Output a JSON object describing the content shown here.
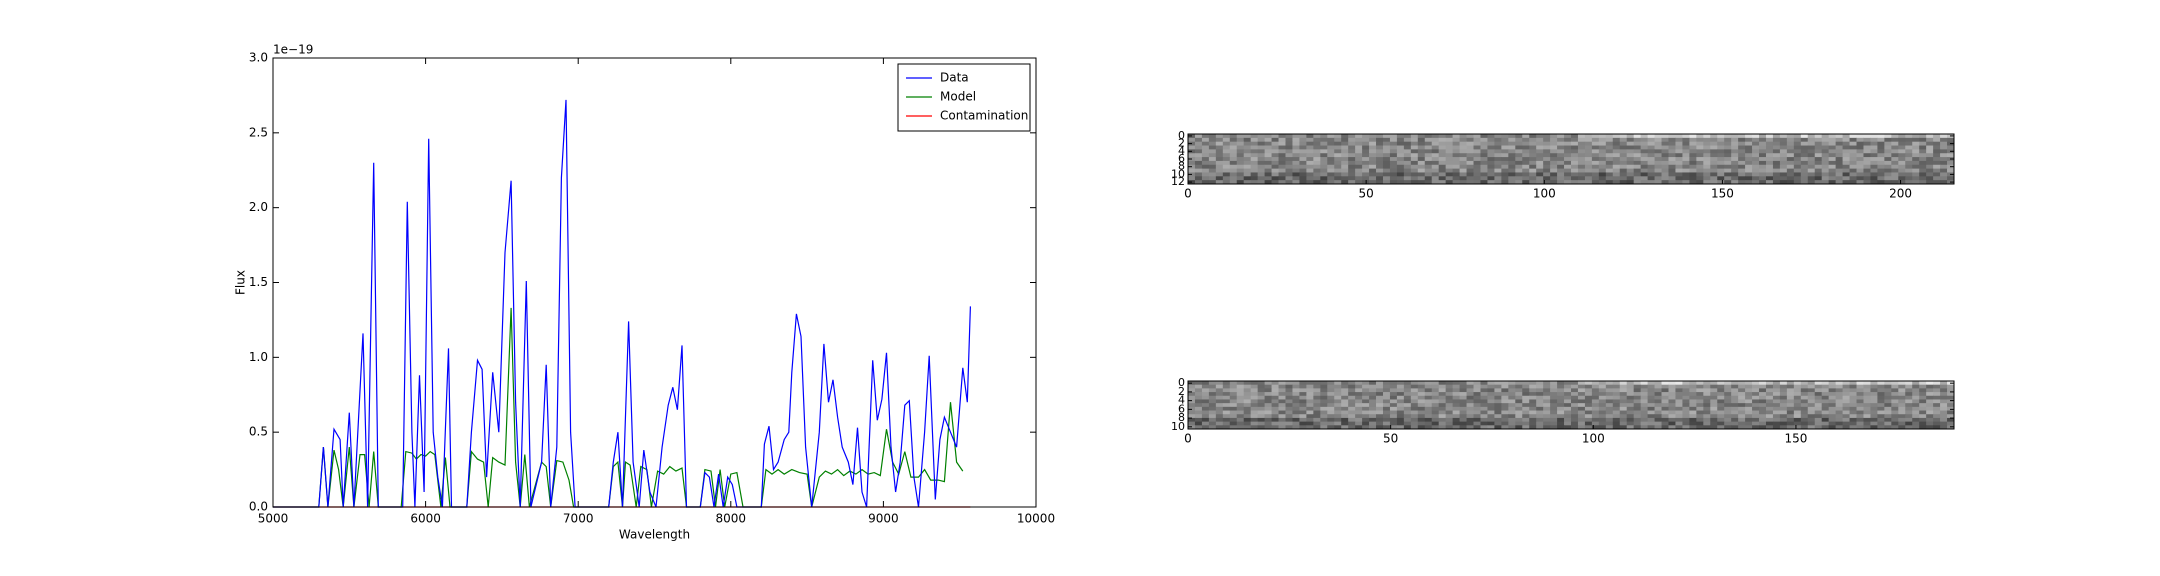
{
  "chart_data": [
    {
      "type": "line",
      "xlabel": "Wavelength",
      "ylabel": "Flux",
      "offset_text": "1e−19",
      "xlim": [
        5000,
        10000
      ],
      "ylim": [
        0,
        3.0
      ],
      "xticks": [
        5000,
        6000,
        7000,
        8000,
        9000,
        10000
      ],
      "yticks": [
        {
          "value": 0,
          "label": "0.0"
        },
        0.5,
        {
          "value": 1,
          "label": "1.0"
        },
        1.5,
        {
          "value": 2,
          "label": "2.0"
        },
        2.5,
        {
          "value": 3,
          "label": "3.0"
        }
      ],
      "legend": "upper right",
      "series": [
        {
          "name": "Contamination",
          "color": "#ff0000",
          "x": [
            5000,
            9570
          ],
          "values": [
            0,
            0
          ]
        },
        {
          "name": "Model",
          "color": "#008000",
          "x": [
            5000,
            5300,
            5330,
            5360,
            5400,
            5430,
            5460,
            5500,
            5530,
            5570,
            5600,
            5630,
            5660,
            5690,
            5840,
            5870,
            5910,
            5940,
            5970,
            6000,
            6030,
            6060,
            6100,
            6130,
            6160,
            6270,
            6300,
            6340,
            6380,
            6410,
            6440,
            6480,
            6520,
            6560,
            6590,
            6620,
            6650,
            6680,
            6760,
            6790,
            6820,
            6860,
            6900,
            6940,
            6970,
            7200,
            7230,
            7260,
            7290,
            7310,
            7340,
            7380,
            7410,
            7450,
            7480,
            7520,
            7560,
            7600,
            7640,
            7680,
            7710,
            7800,
            7830,
            7870,
            7900,
            7930,
            7960,
            8000,
            8040,
            8080,
            8200,
            8230,
            8270,
            8310,
            8350,
            8400,
            8450,
            8500,
            8530,
            8580,
            8620,
            8660,
            8700,
            8740,
            8780,
            8820,
            8860,
            8900,
            8940,
            8980,
            9020,
            9060,
            9100,
            9140,
            9180,
            9230,
            9270,
            9310,
            9360,
            9400,
            9440,
            9480,
            9520
          ],
          "values": [
            0,
            0,
            0.4,
            0,
            0.38,
            0.25,
            0,
            0.4,
            0,
            0.35,
            0.35,
            0,
            0.37,
            0,
            0,
            0.37,
            0.36,
            0.32,
            0.35,
            0.34,
            0.37,
            0.35,
            0,
            0.33,
            0,
            0,
            0.37,
            0.32,
            0.3,
            0,
            0.33,
            0.3,
            0.28,
            1.33,
            0.3,
            0,
            0.35,
            0,
            0.3,
            0.27,
            0,
            0.31,
            0.3,
            0.18,
            0,
            0,
            0.27,
            0.3,
            0,
            0.3,
            0.28,
            0,
            0.27,
            0.25,
            0,
            0.24,
            0.22,
            0.27,
            0.24,
            0.26,
            0,
            0,
            0.25,
            0.24,
            0,
            0.25,
            0,
            0.22,
            0.23,
            0,
            0,
            0.25,
            0.22,
            0.25,
            0.22,
            0.25,
            0.23,
            0.22,
            0,
            0.2,
            0.24,
            0.22,
            0.25,
            0.21,
            0.24,
            0.22,
            0.25,
            0.22,
            0.23,
            0.21,
            0.52,
            0.3,
            0.22,
            0.37,
            0.2,
            0.2,
            0.25,
            0.18,
            0.18,
            0.17,
            0.7,
            0.3,
            0.24
          ]
        },
        {
          "name": "Data",
          "color": "#0000ff",
          "x": [
            5000,
            5300,
            5330,
            5360,
            5400,
            5440,
            5460,
            5500,
            5530,
            5590,
            5620,
            5660,
            5690,
            5850,
            5880,
            5910,
            5930,
            5960,
            5990,
            6020,
            6050,
            6080,
            6110,
            6150,
            6170,
            6270,
            6300,
            6340,
            6370,
            6400,
            6440,
            6480,
            6520,
            6560,
            6590,
            6620,
            6660,
            6690,
            6760,
            6790,
            6820,
            6860,
            6890,
            6920,
            6950,
            6980,
            7200,
            7230,
            7260,
            7290,
            7330,
            7360,
            7400,
            7430,
            7470,
            7510,
            7550,
            7590,
            7620,
            7650,
            7680,
            7710,
            7800,
            7830,
            7860,
            7890,
            7920,
            7950,
            7980,
            8010,
            8040,
            8200,
            8220,
            8250,
            8280,
            8310,
            8350,
            8380,
            8400,
            8430,
            8460,
            8490,
            8530,
            8580,
            8610,
            8640,
            8670,
            8700,
            8730,
            8770,
            8800,
            8830,
            8860,
            8890,
            8930,
            8960,
            8990,
            9020,
            9050,
            9080,
            9110,
            9140,
            9170,
            9200,
            9230,
            9270,
            9300,
            9340,
            9370,
            9400,
            9440,
            9480,
            9520,
            9550,
            9570
          ],
          "values": [
            0,
            0,
            0.4,
            0,
            0.52,
            0.45,
            0,
            0.63,
            0,
            1.16,
            0,
            2.3,
            0,
            0,
            2.04,
            0.5,
            0,
            0.88,
            0.1,
            2.46,
            0.5,
            0.2,
            0,
            1.06,
            0,
            0,
            0.5,
            0.98,
            0.92,
            0.2,
            0.9,
            0.5,
            1.7,
            2.18,
            0.7,
            0,
            1.51,
            0,
            0.3,
            0.95,
            0,
            0.4,
            2.2,
            2.72,
            0.5,
            0,
            0,
            0.3,
            0.5,
            0,
            1.24,
            0.3,
            0,
            0.38,
            0.1,
            0,
            0.4,
            0.68,
            0.8,
            0.65,
            1.08,
            0,
            0,
            0.23,
            0.2,
            0,
            0.22,
            0,
            0.2,
            0.15,
            0,
            0,
            0.42,
            0.54,
            0.25,
            0.3,
            0.45,
            0.5,
            0.9,
            1.29,
            1.14,
            0.4,
            0,
            0.5,
            1.09,
            0.7,
            0.85,
            0.6,
            0.4,
            0.3,
            0.15,
            0.53,
            0.1,
            0,
            0.98,
            0.58,
            0.72,
            1.03,
            0.4,
            0.1,
            0.3,
            0.68,
            0.71,
            0.2,
            0,
            0.5,
            1.01,
            0.05,
            0.45,
            0.6,
            0.5,
            0.4,
            0.93,
            0.7,
            1.34
          ]
        }
      ]
    },
    {
      "type": "image",
      "xlim": [
        0,
        215
      ],
      "ylim": [
        12.5,
        -0.5
      ],
      "xticks": [
        0,
        50,
        100,
        150,
        200
      ],
      "yticks": [
        0,
        2,
        4,
        6,
        8,
        10,
        12
      ]
    },
    {
      "type": "image",
      "xlim": [
        0,
        189
      ],
      "ylim": [
        10.5,
        -0.5
      ],
      "xticks": [
        0,
        50,
        100,
        150
      ],
      "yticks": [
        0,
        2,
        4,
        6,
        8,
        10
      ]
    }
  ]
}
